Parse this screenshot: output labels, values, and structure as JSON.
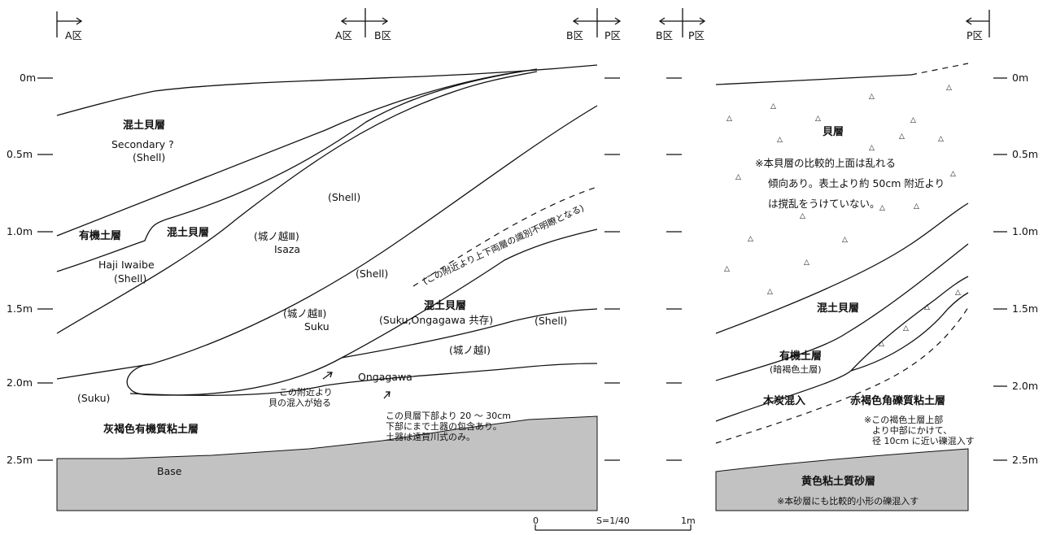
{
  "section_markers": {
    "a_left": "A区",
    "a_mid": "A区",
    "b_mid": "B区",
    "b_right1": "B区",
    "p_right1": "P区",
    "b_right2": "B区",
    "p_right2": "P区",
    "p_far": "P区"
  },
  "depth_left": [
    "0m",
    "0.5m",
    "1.0m",
    "1.5m",
    "2.0m",
    "2.5m"
  ],
  "depth_right": [
    "0m",
    "0.5m",
    "1.0m",
    "1.5m",
    "2.0m",
    "2.5m"
  ],
  "left_section": {
    "mixed_shell_top": "混土貝層",
    "secondary": "Secondary ?",
    "shell_paren_1": "(Shell)",
    "organic_layer": "有機土層",
    "mixed_shell_2": "混土貝層",
    "haji_iwaibe": "Haji Iwaibe",
    "shell_paren_2": "(Shell)",
    "jonokoshi_3": "(城ノ越Ⅲ)",
    "isaza": "Isaza",
    "shell_paren_3": "(Shell)",
    "shell_paren_4": "(Shell)",
    "indistinct_note": "(この附近より上下両層の識別不明瞭となる)",
    "jonokoshi_2": "(城ノ越Ⅱ)",
    "suku": "Suku",
    "mixed_shell_3": "混土貝層",
    "coexist": "(Suku,Ongagawa 共存)",
    "shell_paren_5": "(Shell)",
    "jonokoshi_1": "(城ノ越Ⅰ)",
    "ongagawa": "Ongagawa",
    "suku_paren": "(Suku)",
    "shell_mixing_1": "この附近より",
    "shell_mixing_2": "貝の混入が始る",
    "pottery_note_1": "この貝層下部より 20 ～ 30cm",
    "pottery_note_2": "下部にまで土器の包含あり。",
    "pottery_note_3": "土器は遠賀川式のみ。",
    "gray_clay": "灰褐色有機質粘土層",
    "base": "Base"
  },
  "right_section": {
    "shell_layer": "貝層",
    "note_1": "※本貝層の比較的上面は乱れる",
    "note_2": "傾向あり。表土より約 50cm 附近より",
    "note_3": "は撹乱をうけていない。",
    "mixed_shell": "混土貝層",
    "organic_layer": "有機土層",
    "dark_brown": "(暗褐色土層)",
    "charcoal": "木炭混入",
    "red_brown_clay": "赤褐色角礫質粘土層",
    "gravel_note_1": "※この褐色土層上部",
    "gravel_note_2": "より中部にかけて、",
    "gravel_note_3": "径 10cm に近い礫混入す",
    "yellow_sand": "黄色粘土質砂層",
    "sand_note": "※本砂層にも比較的小形の礫混入す"
  },
  "scale": {
    "zero": "0",
    "ratio": "S=1/40",
    "one_m": "1m"
  }
}
